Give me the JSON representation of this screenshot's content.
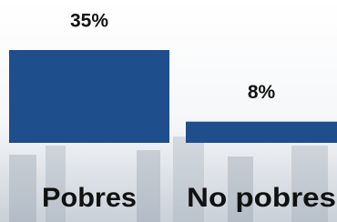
{
  "chart_data": {
    "type": "bar",
    "categories": [
      "Pobres",
      "No pobres"
    ],
    "values": [
      35,
      8
    ],
    "value_labels": [
      "35%",
      "8%"
    ],
    "color": "#1f4e8c"
  }
}
